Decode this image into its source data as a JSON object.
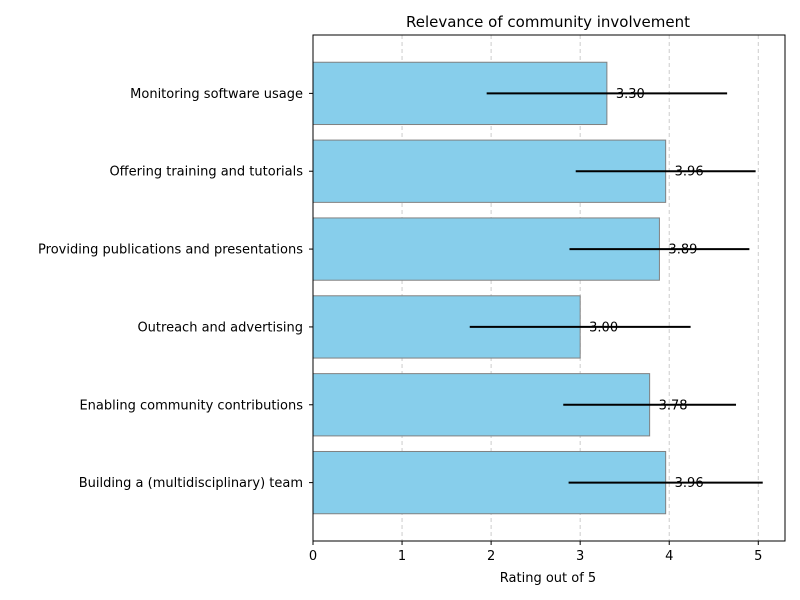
{
  "chart_data": {
    "type": "bar",
    "orientation": "horizontal",
    "title": "Relevance of community involvement",
    "xlabel": "Rating out of 5",
    "ylabel": "",
    "xlim": [
      0,
      5.3
    ],
    "xticks": [
      0,
      1,
      2,
      3,
      4,
      5
    ],
    "grid": "x-dashed",
    "categories": [
      "Monitoring software usage",
      "Offering training and tutorials",
      "Providing publications and presentations",
      "Outreach and advertising",
      "Enabling community contributions",
      "Building a (multidisciplinary) team"
    ],
    "values": [
      3.3,
      3.96,
      3.89,
      3.0,
      3.78,
      3.96
    ],
    "value_labels": [
      "3.30",
      "3.96",
      "3.89",
      "3.00",
      "3.78",
      "3.96"
    ],
    "errors": [
      1.35,
      1.01,
      1.01,
      1.24,
      0.97,
      1.09
    ],
    "colors": {
      "bar": "#87ceeb",
      "bar_edge": "#808080",
      "error": "#000000",
      "grid": "#cccccc"
    }
  }
}
